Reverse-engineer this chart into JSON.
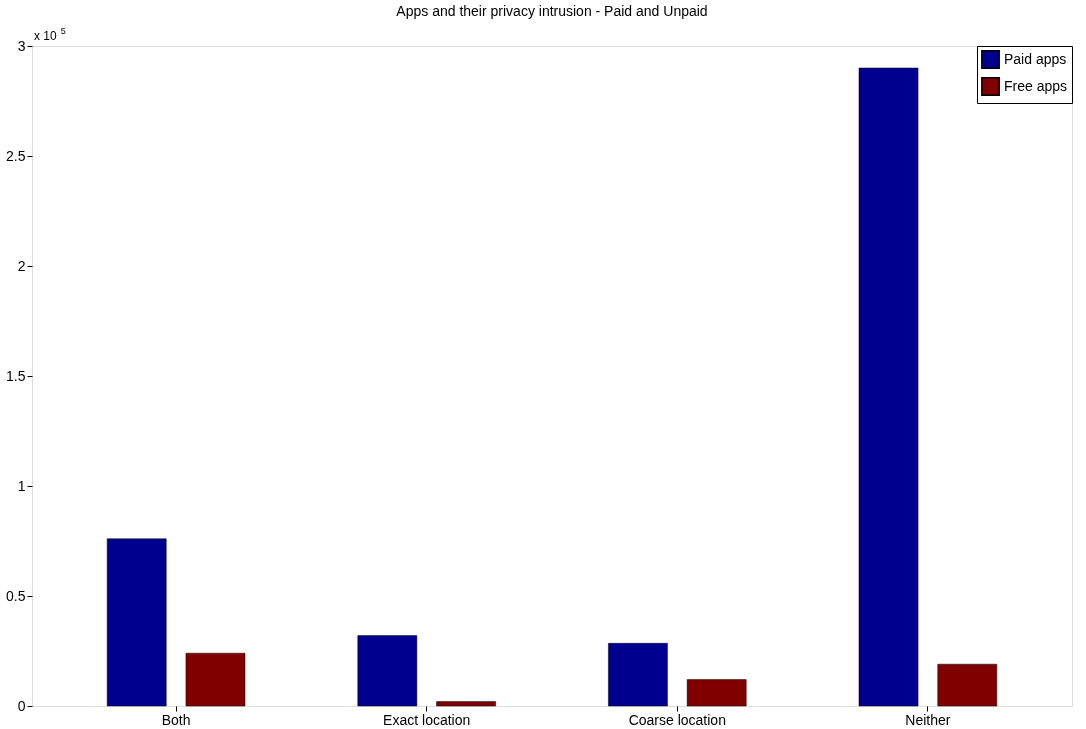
{
  "chart_data": {
    "type": "bar",
    "title": "Apps and their privacy intrusion - Paid and Unpaid",
    "categories": [
      "Both",
      "Exact location",
      "Coarse location",
      "Neither"
    ],
    "series": [
      {
        "name": "Paid apps",
        "color": "#00008f",
        "values": [
          0.76,
          0.32,
          0.285,
          2.9
        ]
      },
      {
        "name": "Free apps",
        "color": "#800000",
        "values": [
          0.24,
          0.02,
          0.12,
          0.19
        ]
      }
    ],
    "ylim": [
      0,
      3
    ],
    "yticks": [
      0,
      0.5,
      1,
      1.5,
      2,
      2.5,
      3
    ],
    "annotations": [
      "x 10$^{5}$"
    ],
    "legend": "top right",
    "grid": false
  }
}
